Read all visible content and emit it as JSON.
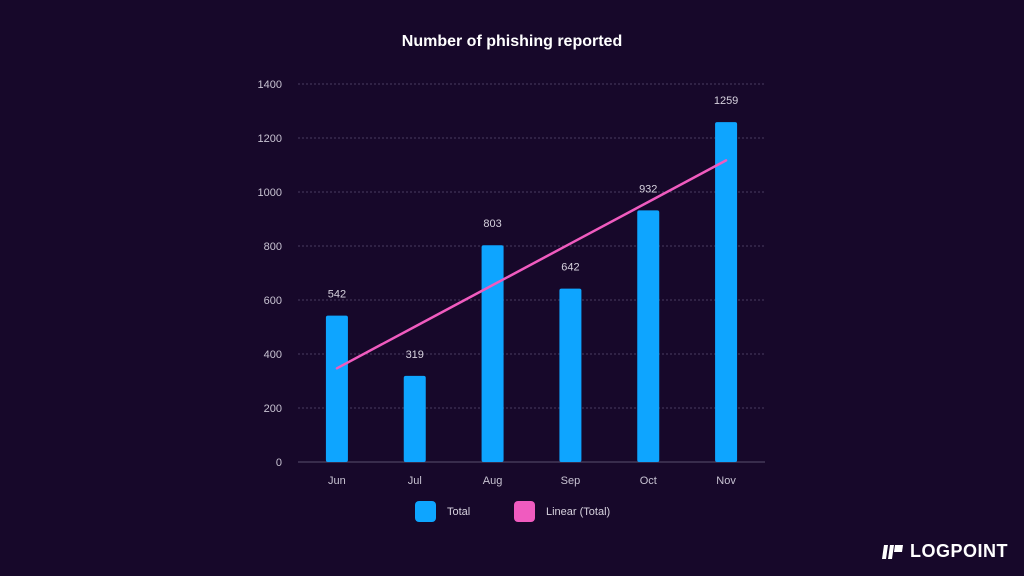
{
  "chart_data": {
    "type": "bar",
    "title": "Number of phishing reported",
    "categories": [
      "Jun",
      "Jul",
      "Aug",
      "Sep",
      "Oct",
      "Nov"
    ],
    "series": [
      {
        "name": "Total",
        "type": "bar",
        "values": [
          542,
          319,
          803,
          642,
          932,
          1259
        ],
        "color": "#0ea5ff"
      },
      {
        "name": "Linear (Total)",
        "type": "line",
        "values": [
          347,
          501,
          655,
          809,
          963,
          1117
        ],
        "color": "#f05bbf"
      }
    ],
    "data_labels": [
      "542",
      "319",
      "803",
      "642",
      "932",
      "1259"
    ],
    "y_ticks": [
      0,
      200,
      400,
      600,
      800,
      1000,
      1200,
      1400
    ],
    "ylim": [
      0,
      1400
    ],
    "grid": true,
    "legend_position": "bottom",
    "background": "#17082a"
  },
  "brand": {
    "name": "LOGPOINT",
    "icon": "logpoint-logo-icon"
  }
}
